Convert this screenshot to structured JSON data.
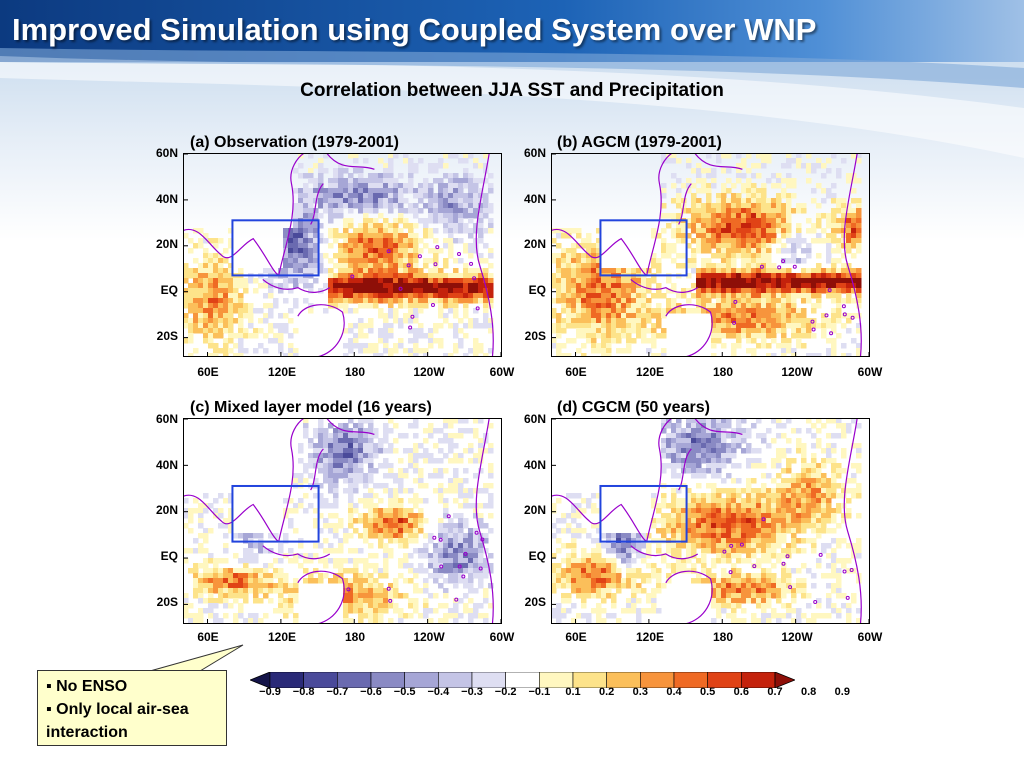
{
  "slide": {
    "title": "Improved Simulation using Coupled System over WNP",
    "subtitle": "Correlation between JJA SST and Precipitation"
  },
  "panels": [
    {
      "title": "(a) Observation (1979-2001)"
    },
    {
      "title": "(b) AGCM (1979-2001)"
    },
    {
      "title": "(c) Mixed layer model (16 years)"
    },
    {
      "title": "(d) CGCM (50 years)"
    }
  ],
  "axes": {
    "lat_ticks": [
      "60N",
      "40N",
      "20N",
      "EQ",
      "20S"
    ],
    "lon_ticks": [
      "60E",
      "120E",
      "180",
      "120W",
      "60W"
    ]
  },
  "callout": {
    "items": [
      "No ENSO",
      "Only local air-sea interaction"
    ],
    "background": "#ffffcc"
  },
  "colorbar": {
    "labels": [
      "-0.9",
      "-0.8",
      "-0.7",
      "-0.6",
      "-0.5",
      "-0.4",
      "-0.3",
      "-0.2",
      "-0.1",
      "0.1",
      "0.2",
      "0.3",
      "0.4",
      "0.5",
      "0.6",
      "0.7",
      "0.8",
      "0.9"
    ],
    "colors": [
      "#141448",
      "#2a2a78",
      "#4a4a9a",
      "#6a6ab0",
      "#8a8ac4",
      "#a6a6d6",
      "#c4c4e6",
      "#dedef2",
      "#ffffff",
      "#fff7c0",
      "#fde38a",
      "#fbbf5a",
      "#f7943c",
      "#ef6a24",
      "#e04316",
      "#c4220c",
      "#8e0f08"
    ]
  },
  "colors": {
    "title_bar": "#1d63b6",
    "region_box": "#2244dd",
    "coastline": "#9900cc"
  }
}
